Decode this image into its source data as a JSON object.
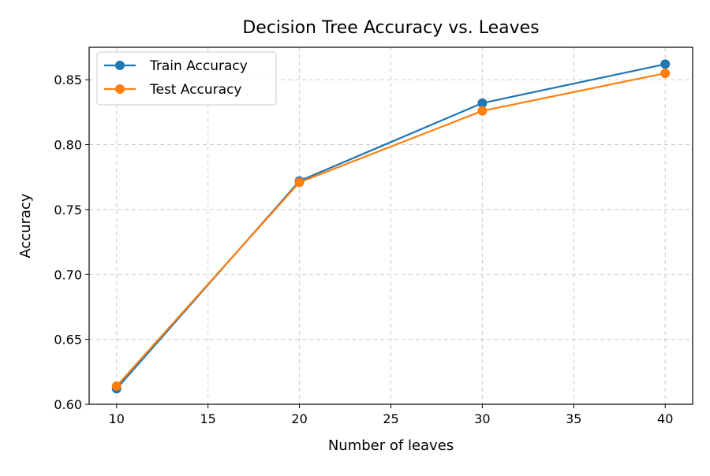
{
  "chart_data": {
    "type": "line",
    "title": "Decision Tree Accuracy vs. Leaves",
    "xlabel": "Number of leaves",
    "ylabel": "Accuracy",
    "x": [
      10,
      20,
      30,
      40
    ],
    "xlim": [
      8.5,
      41.5
    ],
    "ylim": [
      0.6,
      0.875
    ],
    "xticks": [
      10,
      15,
      20,
      25,
      30,
      35,
      40
    ],
    "yticks": [
      0.6,
      0.65,
      0.7,
      0.75,
      0.8,
      0.85
    ],
    "xtick_labels": [
      "10",
      "15",
      "20",
      "25",
      "30",
      "35",
      "40"
    ],
    "ytick_labels": [
      "0.60",
      "0.65",
      "0.70",
      "0.75",
      "0.80",
      "0.85"
    ],
    "grid": true,
    "legend_position": "top-left",
    "series": [
      {
        "name": "Train Accuracy",
        "values": [
          0.612,
          0.772,
          0.832,
          0.862
        ],
        "color": "#1f77b4"
      },
      {
        "name": "Test Accuracy",
        "values": [
          0.614,
          0.771,
          0.826,
          0.855
        ],
        "color": "#ff7f0e"
      }
    ]
  }
}
